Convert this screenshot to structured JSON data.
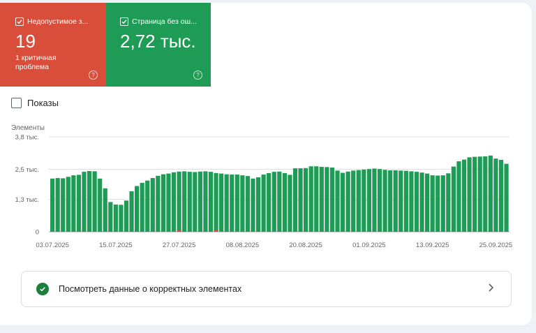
{
  "tiles": {
    "error": {
      "label": "Недопустимое з...",
      "value": "19",
      "sub": "1 критичная проблема",
      "color": "#d94d3b"
    },
    "valid": {
      "label": "Страница без ош...",
      "value": "2,72 тыс.",
      "color": "#1e9c55"
    }
  },
  "impressions_toggle": {
    "label": "Показы",
    "checked": false
  },
  "chart_data": {
    "type": "bar",
    "ylabel": "Элементы",
    "ylim": [
      0,
      3800
    ],
    "ytick_labels": [
      "3,8 тыс.",
      "2,5 тыс.",
      "1,3 тыс.",
      "0"
    ],
    "ytick_values": [
      3800,
      2500,
      1300,
      0
    ],
    "xtick_labels": [
      "03.07.2025",
      "15.07.2025",
      "27.07.2025",
      "08.08.2025",
      "20.08.2025",
      "01.09.2025",
      "13.09.2025",
      "25.09.2025"
    ],
    "grid": true,
    "colors": {
      "valid": "#1e9c55",
      "invalid": "#d94d3b"
    },
    "series": [
      {
        "name": "Страница без ош...",
        "values": [
          2130,
          2150,
          2140,
          2200,
          2260,
          2280,
          2400,
          2430,
          2420,
          2130,
          1740,
          1190,
          1090,
          1080,
          1250,
          1620,
          1830,
          1960,
          2050,
          2150,
          2240,
          2300,
          2330,
          2380,
          2410,
          2420,
          2400,
          2390,
          2410,
          2420,
          2400,
          2350,
          2330,
          2300,
          2290,
          2290,
          2260,
          2230,
          2130,
          2180,
          2290,
          2350,
          2400,
          2410,
          2350,
          2280,
          2540,
          2540,
          2550,
          2620,
          2620,
          2600,
          2590,
          2570,
          2450,
          2360,
          2410,
          2450,
          2470,
          2490,
          2510,
          2530,
          2510,
          2480,
          2460,
          2460,
          2450,
          2440,
          2420,
          2400,
          2370,
          2330,
          2260,
          2250,
          2260,
          2340,
          2610,
          2820,
          2890,
          2980,
          3000,
          3010,
          3020,
          3050,
          2930,
          2880,
          2720
        ]
      },
      {
        "name": "Недопустимое з...",
        "values": [
          19,
          19,
          19,
          19,
          19,
          19,
          19,
          19,
          19,
          19,
          19,
          19,
          19,
          19,
          19,
          19,
          19,
          19,
          19,
          19,
          19,
          19,
          19,
          19,
          60,
          19,
          19,
          19,
          19,
          19,
          19,
          70,
          19,
          19,
          19,
          19,
          19,
          19,
          19,
          19,
          19,
          19,
          19,
          19,
          19,
          19,
          19,
          19,
          19,
          19,
          19,
          19,
          19,
          19,
          19,
          19,
          19,
          19,
          19,
          19,
          19,
          19,
          19,
          19,
          19,
          19,
          19,
          19,
          19,
          19,
          19,
          19,
          19,
          19,
          19,
          19,
          19,
          19,
          19,
          19,
          19,
          19,
          19,
          19,
          19,
          19,
          19
        ]
      }
    ]
  },
  "view_correct": {
    "label": "Посмотреть данные о корректных элементах"
  }
}
